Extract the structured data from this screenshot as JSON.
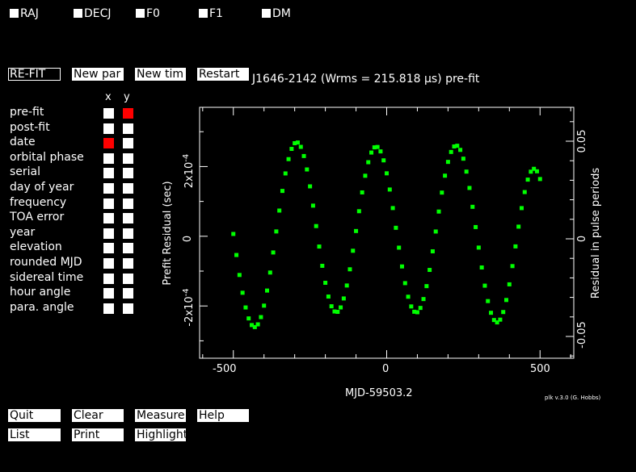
{
  "top_params": [
    {
      "label": "RAJ"
    },
    {
      "label": "DECJ"
    },
    {
      "label": "F0"
    },
    {
      "label": "F1"
    },
    {
      "label": "DM"
    }
  ],
  "action_buttons": {
    "refit": "RE-FIT",
    "new_par": "New par",
    "new_tim": "New tim",
    "restart": "Restart"
  },
  "plot_title": "J1646-2142 (Wrms = 215.818 μs) pre-fit",
  "axis_selector": {
    "x_header": "x",
    "y_header": "y",
    "rows": [
      {
        "label": "pre-fit",
        "x": false,
        "y": true
      },
      {
        "label": "post-fit",
        "x": false,
        "y": false
      },
      {
        "label": "date",
        "x": true,
        "y": false
      },
      {
        "label": "orbital phase",
        "x": false,
        "y": false
      },
      {
        "label": "serial",
        "x": false,
        "y": false
      },
      {
        "label": "day of year",
        "x": false,
        "y": false
      },
      {
        "label": "frequency",
        "x": false,
        "y": false
      },
      {
        "label": "TOA error",
        "x": false,
        "y": false
      },
      {
        "label": "year",
        "x": false,
        "y": false
      },
      {
        "label": "elevation",
        "x": false,
        "y": false
      },
      {
        "label": "rounded MJD",
        "x": false,
        "y": false
      },
      {
        "label": "sidereal time",
        "x": false,
        "y": false
      },
      {
        "label": "hour angle",
        "x": false,
        "y": false
      },
      {
        "label": "para. angle",
        "x": false,
        "y": false
      }
    ]
  },
  "bottom_buttons": {
    "quit": "Quit",
    "clear": "Clear",
    "measure": "Measure",
    "help": "Help",
    "list": "List",
    "print": "Print",
    "highlight": "Highlight"
  },
  "plot": {
    "xlabel": "MJD-59503.2",
    "ylabel_left": "Prefit Residual (sec)",
    "ylabel_right": "Residual in pulse periods",
    "x_ticks": [
      "-500",
      "0",
      "500"
    ],
    "y_ticks_left": [
      "-2x10",
      "0",
      "2x10"
    ],
    "y_tick_exp": "-4",
    "y_ticks_right": [
      "-0.05",
      "0",
      "0.05"
    ],
    "point_color": "#00ff00",
    "credit": "plk v.3.0 (G. Hobbs)"
  },
  "chart_data": {
    "type": "scatter",
    "xlabel": "MJD-59503.2",
    "ylabel": "Prefit Residual (sec)",
    "xlim": [
      -610,
      610
    ],
    "ylim": [
      -0.00035,
      0.00037
    ],
    "series": [
      {
        "x": [
          -500,
          -490,
          -480,
          -470,
          -460,
          -450,
          -440,
          -430,
          -420,
          -410,
          -400,
          -390,
          -380,
          -370,
          -360,
          -350,
          -340,
          -330,
          -320,
          -310,
          -300,
          -290,
          -280,
          -270,
          -260,
          -250,
          -240,
          -230,
          -220,
          -210,
          -200,
          -190,
          -180,
          -170,
          -160,
          -150,
          -140,
          -130,
          -120,
          -110,
          -100,
          -90,
          -80,
          -70,
          -60,
          -50,
          -40,
          -30,
          -20,
          -10,
          0,
          10,
          20,
          30,
          40,
          50,
          60,
          70,
          80,
          90,
          100,
          110,
          120,
          130,
          140,
          150,
          160,
          170,
          180,
          190,
          200,
          210,
          220,
          230,
          240,
          250,
          260,
          270,
          280,
          290,
          300,
          310,
          320,
          330,
          340,
          350,
          360,
          370,
          380,
          390,
          400,
          410,
          420,
          430,
          440,
          450,
          460,
          470,
          480,
          490,
          500
        ],
        "y": [
          6.6e-06,
          -5.38e-05,
          -0.0001111,
          -0.0001621,
          -0.0002043,
          -0.0002357,
          -0.0002548,
          -0.0002606,
          -0.0002528,
          -0.000232,
          -0.0001991,
          -0.0001558,
          -0.0001041,
          -4.65e-05,
          1.38e-05,
          7.37e-05,
          0.0001301,
          0.0001803,
          0.0002213,
          0.0002507,
          0.000267,
          0.000269,
          0.0002565,
          0.0002302,
          0.0001917,
          0.0001432,
          8.79e-05,
          2.92e-05,
          -2.95e-05,
          -8.48e-05,
          -0.0001335,
          -0.000173,
          -0.0002009,
          -0.0002158,
          -0.0002169,
          -0.0002042,
          -0.0001785,
          -0.0001413,
          -9.48e-05,
          -4.16e-05,
          1.5e-05,
          7.19e-05,
          0.0001258,
          0.0001736,
          0.0002125,
          0.0002402,
          0.0002551,
          0.0002562,
          0.0002435,
          0.0002178,
          0.0001806,
          0.0001341,
          8.09e-05,
          2.43e-05,
          -3.27e-05,
          -8.66e-05,
          -0.0001345,
          -0.0001735,
          -0.0002014,
          -0.0002166,
          -0.000218,
          -0.0002056,
          -0.0001802,
          -0.0001431,
          -9.66e-05,
          -4.32e-05,
          1.36e-05,
          7.09e-05,
          0.0001253,
          0.0001738,
          0.0002134,
          0.0002419,
          0.0002577,
          0.0002597,
          0.0002478,
          0.0002226,
          0.0001855,
          0.0001386,
          8.45e-05,
          2.64e-05,
          -3.25e-05,
          -8.96e-05,
          -0.0001418,
          -0.000186,
          -0.0002196,
          -0.0002404,
          -0.0002472,
          -0.0002393,
          -0.0002174,
          -0.0001829,
          -0.000138,
          -8.56e-05,
          -2.91e-05,
          2.76e-05,
          8.08e-05,
          0.0001268,
          0.0001625,
          0.0001853,
          0.0001935,
          0.0001864,
          0.0001642
        ]
      }
    ]
  }
}
